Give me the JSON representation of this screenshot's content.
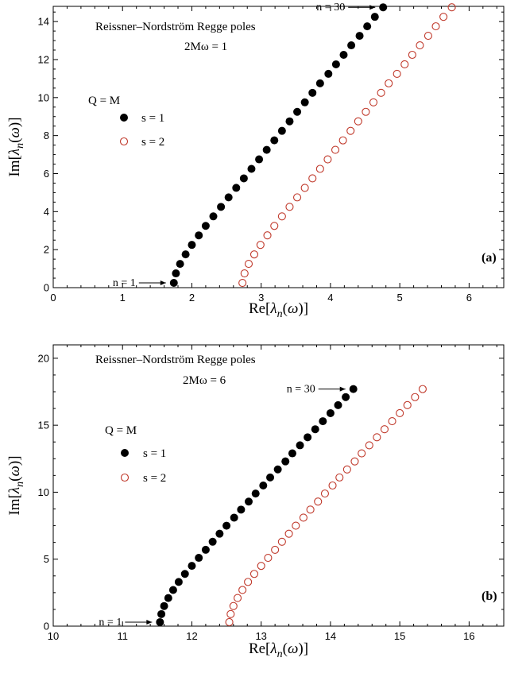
{
  "chart_data": [
    {
      "type": "scatter",
      "panel_label": "(a)",
      "annotation_lines": [
        "Reissner–Nordström Regge poles",
        "2Mω = 1"
      ],
      "legend_title": "Q = M",
      "legend_position": "left",
      "xlabel": "Re[λn(ω)]",
      "ylabel": "Im[λn(ω)]",
      "xlim": [
        0,
        6.5
      ],
      "ylim": [
        0,
        14.8
      ],
      "xticks": [
        0,
        1,
        2,
        3,
        4,
        5,
        6
      ],
      "yticks": [
        0,
        2,
        4,
        6,
        8,
        10,
        12,
        14
      ],
      "first_label": "n = 1",
      "last_label": "n = 30",
      "series": [
        {
          "name": "s = 1",
          "marker": "filled-circle",
          "color": "#000000",
          "x": [
            1.74,
            1.77,
            1.83,
            1.91,
            2.0,
            2.1,
            2.2,
            2.31,
            2.42,
            2.53,
            2.64,
            2.75,
            2.86,
            2.97,
            3.08,
            3.19,
            3.3,
            3.41,
            3.52,
            3.63,
            3.74,
            3.85,
            3.97,
            4.08,
            4.19,
            4.3,
            4.42,
            4.53,
            4.64,
            4.76
          ],
          "y": [
            0.25,
            0.75,
            1.25,
            1.75,
            2.25,
            2.75,
            3.25,
            3.75,
            4.25,
            4.75,
            5.25,
            5.75,
            6.25,
            6.75,
            7.25,
            7.75,
            8.25,
            8.75,
            9.25,
            9.75,
            10.25,
            10.75,
            11.25,
            11.75,
            12.25,
            12.75,
            13.25,
            13.75,
            14.25,
            14.75
          ]
        },
        {
          "name": "s = 2",
          "marker": "open-circle",
          "color": "#c0392b",
          "x": [
            2.73,
            2.76,
            2.82,
            2.9,
            2.99,
            3.09,
            3.19,
            3.3,
            3.41,
            3.52,
            3.63,
            3.74,
            3.85,
            3.96,
            4.07,
            4.18,
            4.29,
            4.4,
            4.51,
            4.62,
            4.73,
            4.84,
            4.96,
            5.07,
            5.18,
            5.29,
            5.41,
            5.52,
            5.63,
            5.75
          ],
          "y": [
            0.25,
            0.75,
            1.25,
            1.75,
            2.25,
            2.75,
            3.25,
            3.75,
            4.25,
            4.75,
            5.25,
            5.75,
            6.25,
            6.75,
            7.25,
            7.75,
            8.25,
            8.75,
            9.25,
            9.75,
            10.25,
            10.75,
            11.25,
            11.75,
            12.25,
            12.75,
            13.25,
            13.75,
            14.25,
            14.75
          ]
        }
      ]
    },
    {
      "type": "scatter",
      "panel_label": "(b)",
      "annotation_lines": [
        "Reissner–Nordström Regge poles",
        "2Mω = 6"
      ],
      "legend_title": "Q = M",
      "legend_position": "left",
      "xlabel": "Re[λn(ω)]",
      "ylabel": "Im[λn(ω)]",
      "xlim": [
        10,
        16.5
      ],
      "ylim": [
        0,
        21
      ],
      "xticks": [
        10,
        11,
        12,
        13,
        14,
        15,
        16
      ],
      "yticks": [
        0,
        5,
        10,
        15,
        20
      ],
      "first_label": "n = 1",
      "last_label": "n = 30",
      "series": [
        {
          "name": "s = 1",
          "marker": "filled-circle",
          "color": "#000000",
          "x": [
            11.54,
            11.56,
            11.6,
            11.66,
            11.73,
            11.81,
            11.9,
            12.0,
            12.1,
            12.2,
            12.3,
            12.4,
            12.5,
            12.61,
            12.71,
            12.82,
            12.92,
            13.03,
            13.13,
            13.24,
            13.35,
            13.45,
            13.56,
            13.67,
            13.78,
            13.89,
            14.0,
            14.11,
            14.22,
            14.33
          ],
          "y": [
            0.3,
            0.9,
            1.5,
            2.1,
            2.7,
            3.3,
            3.9,
            4.5,
            5.1,
            5.7,
            6.3,
            6.9,
            7.5,
            8.1,
            8.7,
            9.3,
            9.9,
            10.5,
            11.1,
            11.7,
            12.3,
            12.9,
            13.5,
            14.1,
            14.7,
            15.3,
            15.9,
            16.5,
            17.1,
            17.7
          ]
        },
        {
          "name": "s = 2",
          "marker": "open-circle",
          "color": "#c0392b",
          "x": [
            12.54,
            12.56,
            12.6,
            12.66,
            12.73,
            12.81,
            12.9,
            13.0,
            13.1,
            13.2,
            13.3,
            13.4,
            13.5,
            13.61,
            13.71,
            13.82,
            13.92,
            14.03,
            14.13,
            14.24,
            14.35,
            14.45,
            14.56,
            14.67,
            14.78,
            14.89,
            15.0,
            15.11,
            15.22,
            15.33
          ],
          "y": [
            0.3,
            0.9,
            1.5,
            2.1,
            2.7,
            3.3,
            3.9,
            4.5,
            5.1,
            5.7,
            6.3,
            6.9,
            7.5,
            8.1,
            8.7,
            9.3,
            9.9,
            10.5,
            11.1,
            11.7,
            12.3,
            12.9,
            13.5,
            14.1,
            14.7,
            15.3,
            15.9,
            16.5,
            17.1,
            17.7
          ]
        }
      ]
    }
  ]
}
